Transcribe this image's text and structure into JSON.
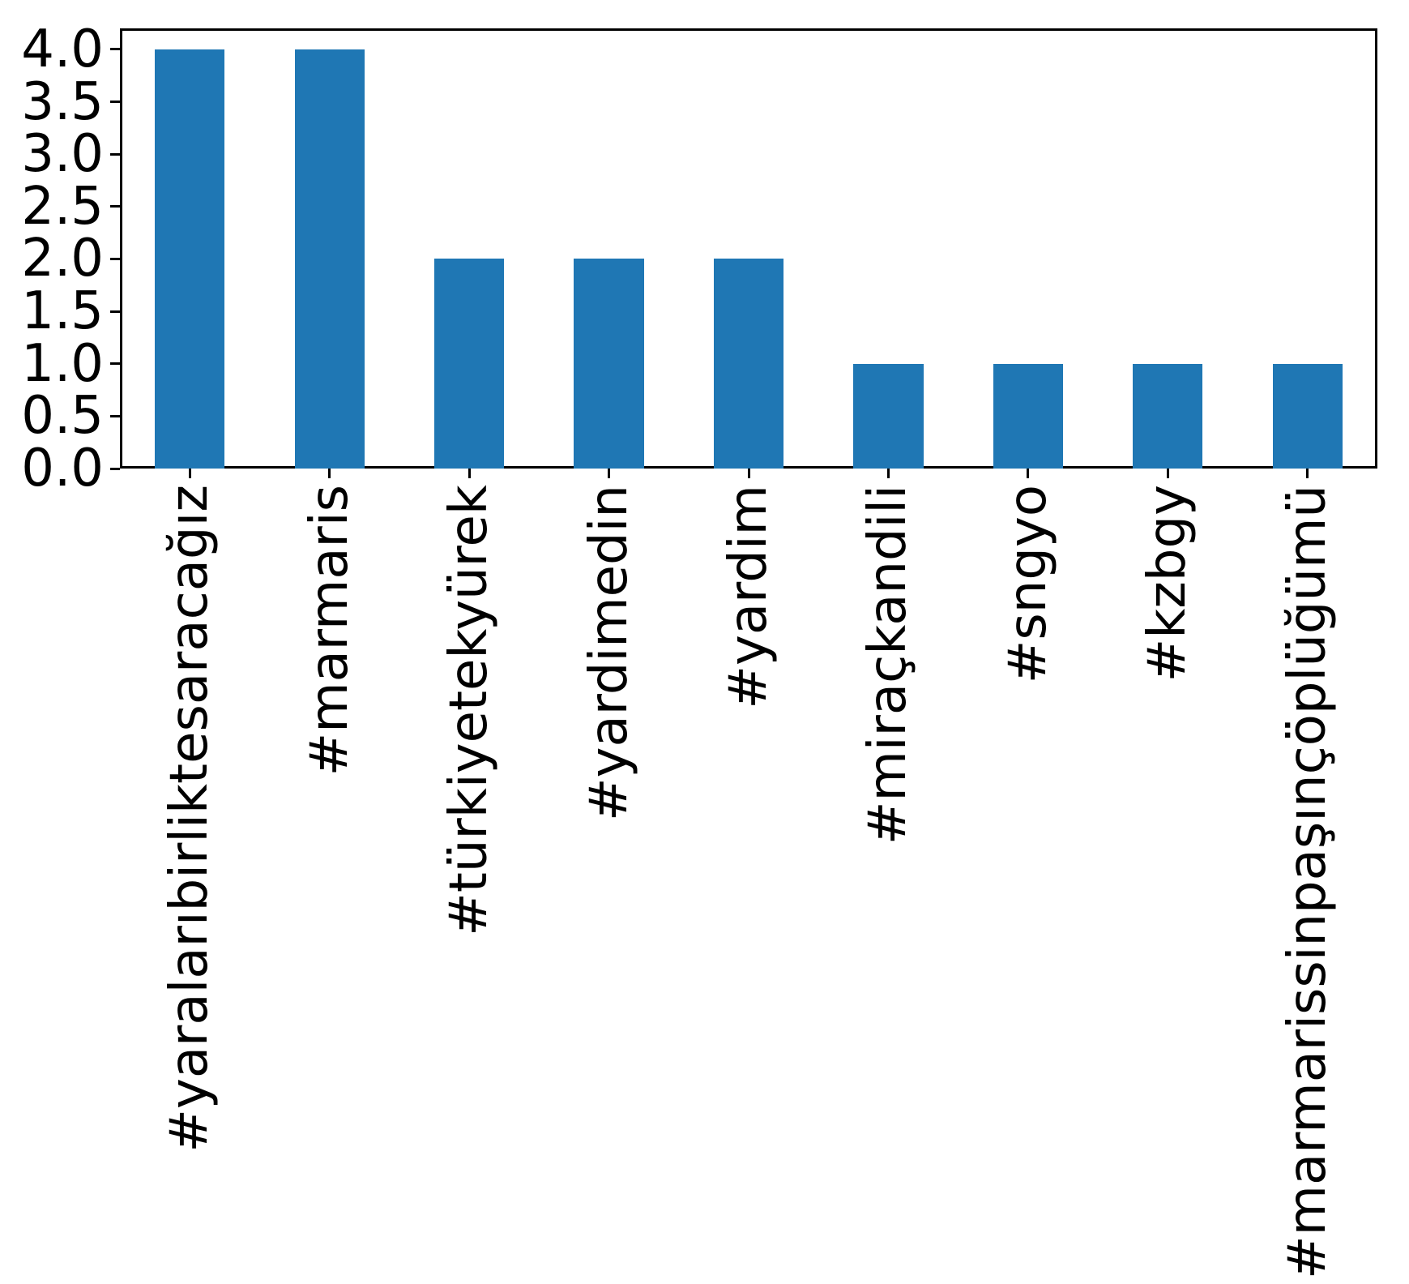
{
  "figure": {
    "background_color": "#ffffff"
  },
  "chart_data": {
    "type": "bar",
    "title": "",
    "xlabel": "",
    "ylabel": "",
    "categories": [
      "#yaralarıbirliktesaracağız",
      "#marmaris",
      "#türkiyetekyürek",
      "#yardimedin",
      "#yardim",
      "#miraçkandili",
      "#sngyo",
      "#kzbgy",
      "#marmarissinpaşınçöplüğümü"
    ],
    "values": [
      4,
      4,
      2,
      2,
      2,
      1,
      1,
      1,
      1
    ],
    "ylim": [
      0,
      4.2
    ],
    "yticks": [
      0.0,
      0.5,
      1.0,
      1.5,
      2.0,
      2.5,
      3.0,
      3.5,
      4.0
    ],
    "ytick_labels": [
      "0.0",
      "0.5",
      "1.0",
      "1.5",
      "2.0",
      "2.5",
      "3.0",
      "3.5",
      "4.0"
    ],
    "xtick_label_rotation_deg": 90,
    "bar_color": "#1f77b4",
    "axis_color": "#000000",
    "bar_width_fraction": 0.5,
    "grid": false,
    "legend_position": "none"
  }
}
